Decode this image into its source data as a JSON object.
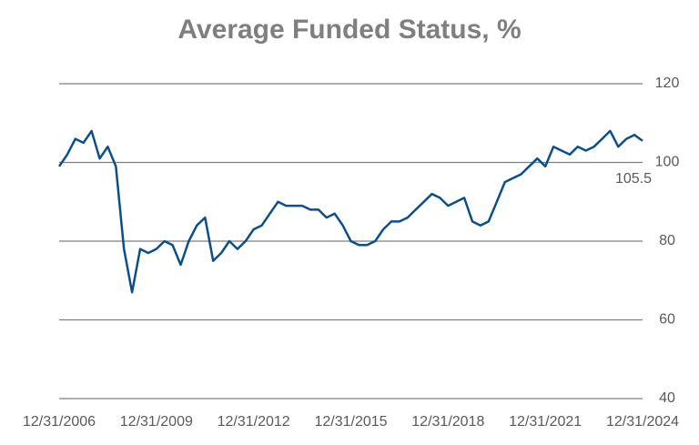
{
  "chart_data": {
    "type": "line",
    "title": "Average Funded Status, %",
    "x": [
      "12/31/2006",
      null,
      null,
      null,
      null,
      null,
      null,
      null,
      null,
      null,
      null,
      null,
      "12/31/2009",
      null,
      null,
      null,
      null,
      null,
      null,
      null,
      null,
      null,
      null,
      null,
      "12/31/2012",
      null,
      null,
      null,
      null,
      null,
      null,
      null,
      null,
      null,
      null,
      null,
      "12/31/2015",
      null,
      null,
      null,
      null,
      null,
      null,
      null,
      null,
      null,
      null,
      null,
      "12/31/2018",
      null,
      null,
      null,
      null,
      null,
      null,
      null,
      null,
      null,
      null,
      null,
      "12/31/2021",
      null,
      null,
      null,
      null,
      null,
      null,
      null,
      null,
      null,
      null,
      null,
      "12/31/2024"
    ],
    "series": [
      {
        "color": "#0b4f8a",
        "values": [
          99,
          102,
          106,
          105,
          108,
          101,
          104,
          99,
          78,
          67,
          78,
          77,
          78,
          80,
          79,
          74,
          80,
          84,
          86,
          75,
          77,
          80,
          78,
          80,
          83,
          84,
          87,
          90,
          89,
          89,
          89,
          88,
          88,
          86,
          87,
          84,
          80,
          79,
          79,
          80,
          83,
          85,
          85,
          86,
          88,
          90,
          92,
          91,
          89,
          90,
          91,
          85,
          84,
          85,
          90,
          95,
          96,
          97,
          99,
          101,
          99,
          104,
          103,
          102,
          104,
          103,
          104,
          106,
          108,
          104,
          106,
          107,
          105.5
        ]
      }
    ],
    "ylim": [
      40,
      120
    ],
    "yticks": [
      40,
      60,
      80,
      100,
      120
    ],
    "grid": true,
    "y_axis_side": "right"
  }
}
